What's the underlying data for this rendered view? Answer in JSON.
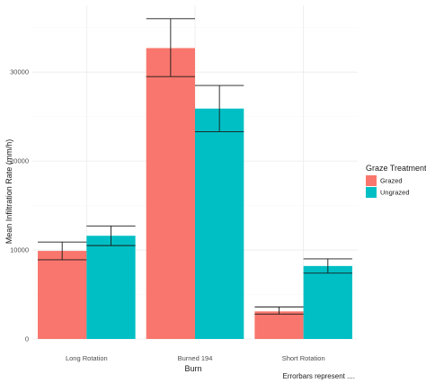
{
  "chart_data": {
    "type": "bar",
    "title": "",
    "xlabel": "Burn",
    "ylabel": "Mean Infiltration Rate (mm/h)",
    "categories": [
      "Long Rotation",
      "Burned 194",
      "Short Rotation"
    ],
    "series": [
      {
        "name": "Grazed",
        "color": "#F8766D",
        "values": [
          9900,
          32700,
          3100
        ],
        "err_low": [
          8900,
          29500,
          2800
        ],
        "err_high": [
          10900,
          36000,
          3600
        ]
      },
      {
        "name": "Ungrazed",
        "color": "#00BFC4",
        "values": [
          11600,
          25900,
          8200
        ],
        "err_low": [
          10500,
          23300,
          7400
        ],
        "err_high": [
          12700,
          28500,
          9000
        ]
      }
    ],
    "ylim": [
      0,
      37500
    ],
    "yticks": [
      0,
      10000,
      20000,
      30000
    ],
    "ytick_labels": [
      "0",
      "10000",
      "20000",
      "30000"
    ],
    "grid": true,
    "legend": {
      "title": "Graze Treatment",
      "position": "right"
    },
    "caption": "Errorbars represent ...."
  }
}
